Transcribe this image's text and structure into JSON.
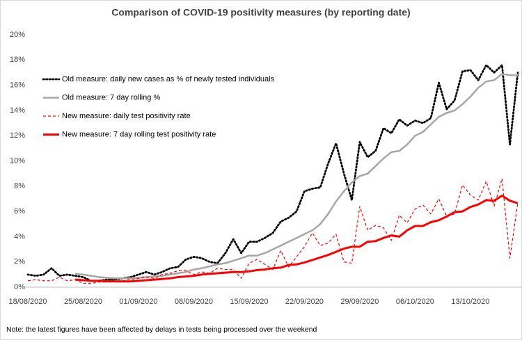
{
  "chart_data": {
    "type": "line",
    "title": "Comparison of COVID-19 positivity measures (by reporting date)",
    "note": "Note: the latest figures have been affected by delays in tests being processed over the weekend",
    "categories": [
      "18/08/2020",
      null,
      null,
      null,
      null,
      null,
      null,
      "25/08/2020",
      null,
      null,
      null,
      null,
      null,
      null,
      "01/09/2020",
      null,
      null,
      null,
      null,
      null,
      null,
      "08/09/2020",
      null,
      null,
      null,
      null,
      null,
      null,
      "15/09/2020",
      null,
      null,
      null,
      null,
      null,
      null,
      "22/09/2020",
      null,
      null,
      null,
      null,
      null,
      null,
      "29/09/2020",
      null,
      null,
      null,
      null,
      null,
      null,
      "06/10/2020",
      null,
      null,
      null,
      null,
      null,
      null,
      "13/10/2020",
      null,
      null,
      null,
      null,
      null,
      null
    ],
    "ylim": [
      0,
      20
    ],
    "yticks": [
      {
        "value": 0,
        "label": "0%"
      },
      {
        "value": 2,
        "label": "2%"
      },
      {
        "value": 4,
        "label": "4%"
      },
      {
        "value": 6,
        "label": "6%"
      },
      {
        "value": 8,
        "label": "8%"
      },
      {
        "value": 10,
        "label": "10%"
      },
      {
        "value": 12,
        "label": "12%"
      },
      {
        "value": 14,
        "label": "14%"
      },
      {
        "value": 16,
        "label": "16%"
      },
      {
        "value": 18,
        "label": "18%"
      },
      {
        "value": 20,
        "label": "20%"
      }
    ],
    "grid": false,
    "legend": "upper-left",
    "series": [
      {
        "name": "Old measure: daily new cases as % of newly tested individuals",
        "color": "#000000",
        "style": "dotted",
        "values": [
          1.0,
          0.9,
          1.0,
          1.5,
          0.9,
          1.0,
          0.9,
          0.8,
          0.5,
          0.5,
          0.6,
          0.6,
          0.7,
          0.8,
          1.0,
          1.2,
          1.0,
          1.2,
          1.5,
          1.6,
          2.2,
          2.4,
          2.3,
          2.0,
          1.9,
          2.7,
          3.8,
          2.7,
          3.6,
          3.6,
          3.9,
          4.3,
          5.2,
          5.5,
          6.0,
          7.6,
          7.8,
          7.9,
          9.8,
          11.4,
          9.0,
          6.9,
          11.5,
          10.3,
          10.8,
          12.6,
          12.2,
          13.3,
          12.8,
          13.2,
          13.0,
          13.4,
          16.2,
          14.1,
          14.8,
          17.1,
          17.2,
          16.4,
          17.6,
          17.0,
          17.6,
          11.3,
          17.0
        ]
      },
      {
        "name": "Old measure: 7 day rolling %",
        "color": "#a6a6a6",
        "style": "solid",
        "values": [
          null,
          null,
          null,
          null,
          null,
          null,
          1.05,
          1.0,
          0.9,
          0.8,
          0.75,
          0.7,
          0.7,
          0.7,
          0.75,
          0.8,
          0.85,
          0.9,
          1.0,
          1.1,
          1.2,
          1.4,
          1.5,
          1.65,
          1.8,
          1.9,
          2.1,
          2.3,
          2.5,
          2.5,
          2.7,
          3.0,
          3.3,
          3.6,
          3.9,
          4.2,
          4.5,
          5.0,
          5.8,
          6.8,
          7.6,
          8.3,
          8.8,
          9.0,
          9.6,
          10.2,
          10.7,
          10.8,
          11.3,
          12.0,
          12.3,
          12.9,
          13.5,
          13.8,
          14.0,
          14.5,
          15.1,
          15.8,
          16.3,
          16.4,
          16.9,
          16.8,
          16.8
        ]
      },
      {
        "name": "New measure: daily test positivity rate",
        "color": "#ff0000",
        "style": "dashed",
        "values": [
          0.5,
          0.6,
          0.5,
          0.5,
          0.8,
          0.5,
          0.6,
          0.3,
          0.3,
          0.4,
          0.4,
          0.5,
          0.5,
          0.6,
          0.7,
          0.8,
          0.7,
          1.0,
          1.1,
          1.3,
          1.3,
          1.0,
          1.2,
          1.1,
          1.5,
          1.4,
          1.4,
          0.7,
          1.9,
          2.2,
          1.8,
          1.4,
          2.9,
          1.6,
          2.4,
          3.2,
          4.3,
          3.3,
          3.5,
          4.2,
          2.0,
          1.9,
          6.4,
          4.5,
          4.9,
          4.7,
          3.7,
          5.7,
          5.1,
          6.2,
          6.5,
          5.8,
          7.0,
          5.6,
          5.8,
          8.1,
          7.3,
          6.9,
          8.4,
          6.4,
          8.6,
          2.3,
          6.7
        ]
      },
      {
        "name": "New measure: 7 day rolling test positivity rate",
        "color": "#ff0000",
        "style": "thick",
        "values": [
          null,
          null,
          null,
          null,
          null,
          null,
          0.6,
          0.55,
          0.5,
          0.5,
          0.45,
          0.45,
          0.45,
          0.45,
          0.5,
          0.55,
          0.6,
          0.65,
          0.7,
          0.8,
          0.85,
          0.9,
          1.0,
          1.05,
          1.1,
          1.15,
          1.2,
          1.2,
          1.25,
          1.35,
          1.4,
          1.5,
          1.55,
          1.75,
          1.8,
          1.95,
          2.15,
          2.35,
          2.55,
          2.8,
          3.05,
          3.2,
          3.2,
          3.6,
          3.65,
          3.9,
          4.1,
          4.0,
          4.5,
          4.85,
          4.85,
          5.15,
          5.3,
          5.6,
          5.95,
          6.0,
          6.35,
          6.55,
          6.9,
          6.85,
          7.25,
          6.85,
          6.65
        ]
      }
    ]
  }
}
